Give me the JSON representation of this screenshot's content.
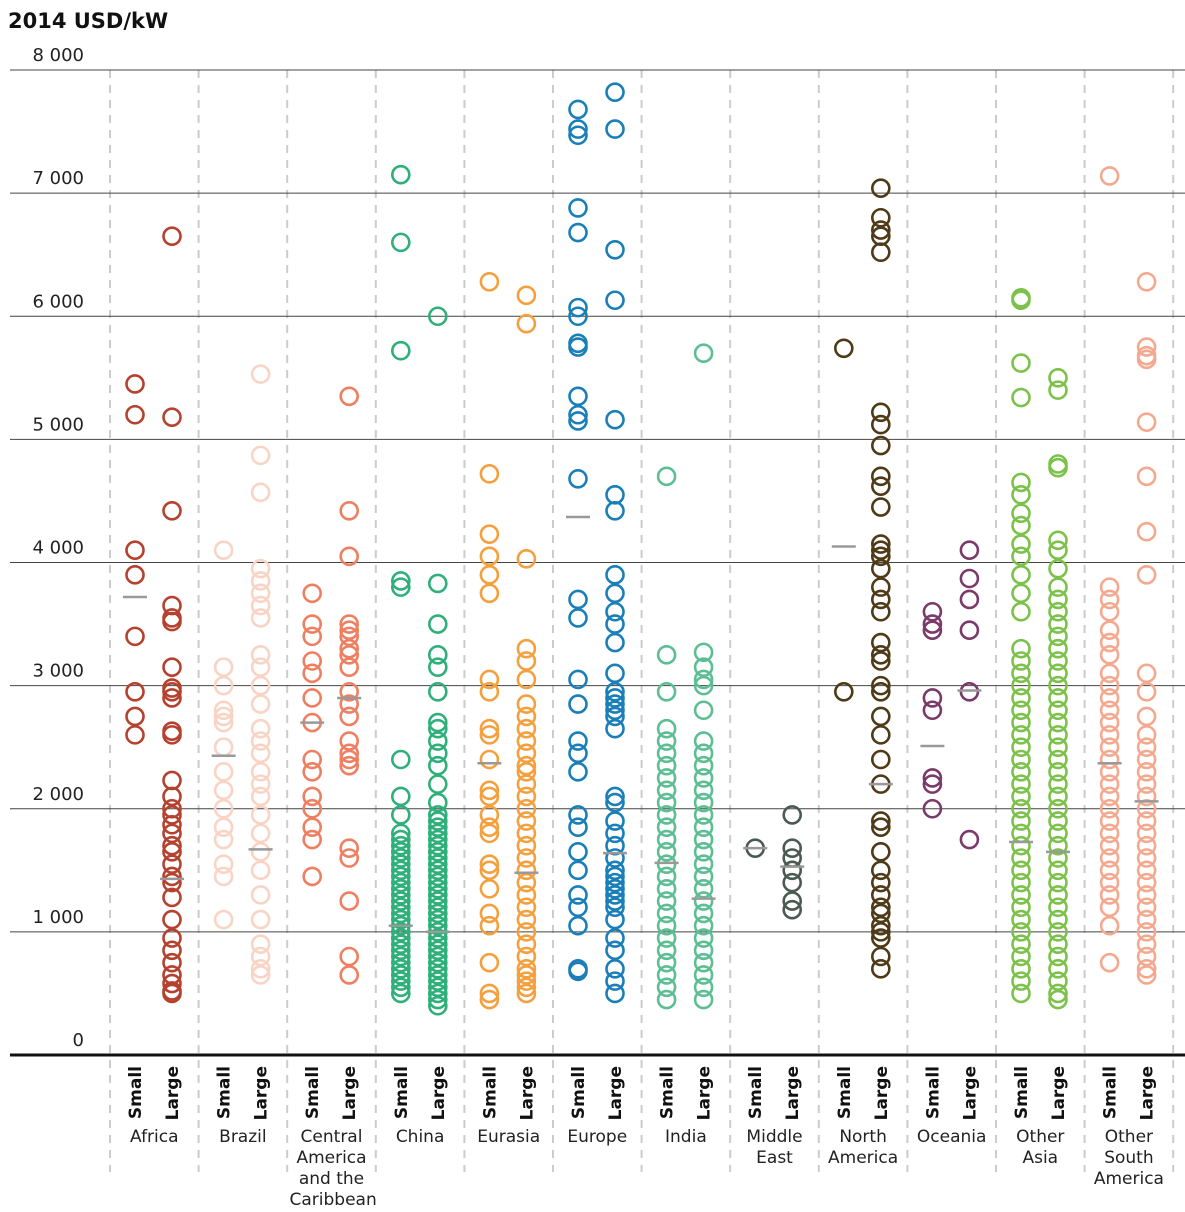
{
  "chart_data": {
    "type": "scatter",
    "title": "2014 USD/kW",
    "ylim": [
      0,
      8000
    ],
    "yticks": [
      0,
      {
        "value": 1000,
        "label": "1 000"
      },
      {
        "value": 2000,
        "label": "2 000"
      },
      {
        "value": 3000,
        "label": "3 000"
      },
      {
        "value": 4000,
        "label": "4 000"
      },
      {
        "value": 5000,
        "label": "5 000"
      },
      {
        "value": 6000,
        "label": "6 000"
      },
      {
        "value": 7000,
        "label": "7 000"
      },
      {
        "value": 8000,
        "label": "8 000"
      }
    ],
    "grid": true,
    "size_labels": [
      "Small",
      "Large"
    ],
    "median_color": "#999999",
    "series": [
      {
        "name": "Africa",
        "color": "#b5412f",
        "medians": [
          3720,
          1430
        ],
        "small": [
          5450,
          5200,
          4100,
          3900,
          3400,
          2950,
          2750,
          2600
        ],
        "large": [
          6650,
          5180,
          4420,
          3650,
          3550,
          3520,
          3150,
          2980,
          2950,
          2900,
          2630,
          2600,
          2230,
          2100,
          2000,
          1950,
          1870,
          1800,
          1700,
          1650,
          1550,
          1450,
          1400,
          1280,
          1100,
          950,
          850,
          750,
          650,
          580,
          520,
          500
        ]
      },
      {
        "name": "Brazil",
        "color": "#f9d4c4",
        "medians": [
          2430,
          1670
        ],
        "small": [
          4100,
          3150,
          3000,
          2800,
          2750,
          2700,
          2500,
          2300,
          2150,
          2000,
          1850,
          1750,
          1550,
          1450,
          1100
        ],
        "large": [
          5530,
          4870,
          4570,
          3950,
          3850,
          3750,
          3650,
          3550,
          3250,
          3150,
          3000,
          2850,
          2650,
          2550,
          2450,
          2300,
          2200,
          2100,
          1950,
          1800,
          1650,
          1500,
          1300,
          1100,
          900,
          800,
          700,
          650
        ]
      },
      {
        "name": "Central America and the Caribbean",
        "color": "#ef7f61",
        "medians": [
          2700,
          2900
        ],
        "small": [
          3750,
          3500,
          3400,
          3200,
          3100,
          2900,
          2700,
          2400,
          2300,
          2100,
          2000,
          1850,
          1750,
          1450
        ],
        "large": [
          5350,
          4420,
          4050,
          3500,
          3450,
          3400,
          3300,
          3250,
          3150,
          2950,
          2850,
          2750,
          2550,
          2450,
          2400,
          2350,
          1680,
          1600,
          1250,
          800,
          650
        ]
      },
      {
        "name": "China",
        "color": "#2fb07a",
        "medians": [
          1050,
          1000
        ],
        "small": [
          7150,
          6600,
          5720,
          3850,
          3800,
          2400,
          2100,
          1950,
          1800,
          1750,
          1700,
          1650,
          1600,
          1550,
          1500,
          1450,
          1400,
          1350,
          1300,
          1250,
          1200,
          1150,
          1100,
          1050,
          1000,
          950,
          900,
          850,
          800,
          750,
          700,
          650,
          600,
          550,
          500
        ],
        "large": [
          6000,
          3830,
          3500,
          3250,
          3150,
          2950,
          2700,
          2650,
          2550,
          2450,
          2350,
          2200,
          2050,
          1950,
          1900,
          1850,
          1800,
          1750,
          1700,
          1650,
          1600,
          1550,
          1500,
          1450,
          1400,
          1350,
          1300,
          1250,
          1200,
          1150,
          1100,
          1050,
          1000,
          950,
          900,
          850,
          800,
          750,
          700,
          650,
          600,
          550,
          500,
          450,
          400
        ]
      },
      {
        "name": "Eurasia",
        "color": "#f4a03e",
        "medians": [
          2370,
          1480
        ],
        "small": [
          6280,
          4720,
          4230,
          4050,
          3900,
          3750,
          3050,
          2950,
          2650,
          2600,
          2400,
          2150,
          2100,
          1950,
          1850,
          1800,
          1550,
          1500,
          1350,
          1150,
          1050,
          750,
          500,
          450
        ],
        "large": [
          6170,
          5940,
          4030,
          3300,
          3200,
          3050,
          2850,
          2750,
          2650,
          2550,
          2450,
          2350,
          2300,
          2200,
          2100,
          2000,
          1900,
          1800,
          1700,
          1600,
          1500,
          1400,
          1300,
          1200,
          1100,
          1000,
          900,
          800,
          700,
          650,
          600,
          550,
          500
        ]
      },
      {
        "name": "Europe",
        "color": "#1a7fb8",
        "medians": [
          4370,
          1640
        ],
        "small": [
          7680,
          7520,
          7470,
          6880,
          6680,
          6070,
          6000,
          5780,
          5750,
          5350,
          5200,
          5150,
          4680,
          3700,
          3550,
          3050,
          2850,
          2550,
          2450,
          2300,
          1950,
          1850,
          1650,
          1500,
          1300,
          1200,
          1050,
          700,
          680
        ],
        "large": [
          7820,
          7520,
          6540,
          6130,
          5160,
          4550,
          4420,
          3900,
          3750,
          3600,
          3500,
          3350,
          3100,
          2950,
          2900,
          2850,
          2800,
          2750,
          2650,
          2100,
          2050,
          1900,
          1800,
          1700,
          1600,
          1500,
          1450,
          1400,
          1350,
          1300,
          1250,
          1200,
          1100,
          950,
          850,
          700,
          600,
          500
        ]
      },
      {
        "name": "India",
        "color": "#5dbe94",
        "medians": [
          1560,
          1270
        ],
        "small": [
          4700,
          3250,
          2950,
          2650,
          2550,
          2450,
          2350,
          2250,
          2150,
          2050,
          1950,
          1850,
          1750,
          1650,
          1550,
          1450,
          1350,
          1250,
          1150,
          1050,
          950,
          850,
          750,
          650,
          550,
          450
        ],
        "large": [
          5700,
          3270,
          3150,
          3050,
          3000,
          2800,
          2550,
          2450,
          2350,
          2250,
          2150,
          2050,
          1950,
          1850,
          1750,
          1650,
          1550,
          1450,
          1350,
          1250,
          1150,
          1050,
          950,
          850,
          750,
          650,
          550,
          450
        ]
      },
      {
        "name": "Middle East",
        "color": "#4a5a52",
        "medians": [
          1680,
          1530
        ],
        "small": [
          1680
        ],
        "large": [
          1950,
          1680,
          1600,
          1500,
          1400,
          1250,
          1180
        ]
      },
      {
        "name": "North America",
        "color": "#4f3a17",
        "medians": [
          4130,
          2200
        ],
        "small": [
          5740,
          2950
        ],
        "large": [
          7040,
          6800,
          6700,
          6650,
          6520,
          5220,
          5120,
          4950,
          4700,
          4620,
          4450,
          4150,
          4100,
          4050,
          3950,
          3800,
          3700,
          3600,
          3350,
          3250,
          3200,
          3000,
          2950,
          2750,
          2600,
          2400,
          2200,
          1900,
          1850,
          1650,
          1500,
          1400,
          1300,
          1200,
          1150,
          1050,
          1000,
          950,
          800,
          700
        ]
      },
      {
        "name": "Oceania",
        "color": "#7a3a6a",
        "medians": [
          2510,
          2960
        ],
        "small": [
          3600,
          3500,
          3450,
          2900,
          2800,
          2250,
          2200,
          2000
        ],
        "large": [
          4100,
          3870,
          3700,
          3450,
          2950,
          1750
        ]
      },
      {
        "name": "Other Asia",
        "color": "#7cc14a",
        "medians": [
          1730,
          1650
        ],
        "small": [
          6150,
          6130,
          5620,
          5340,
          4650,
          4550,
          4400,
          4300,
          4150,
          4050,
          3900,
          3750,
          3600,
          3300,
          3200,
          3100,
          3000,
          2900,
          2800,
          2700,
          2600,
          2500,
          2400,
          2300,
          2200,
          2100,
          2000,
          1900,
          1800,
          1700,
          1600,
          1500,
          1400,
          1300,
          1200,
          1100,
          1000,
          900,
          800,
          700,
          600,
          500
        ],
        "large": [
          5500,
          5400,
          4800,
          4770,
          4180,
          4100,
          3950,
          3800,
          3700,
          3600,
          3500,
          3400,
          3300,
          3200,
          3100,
          3000,
          2900,
          2800,
          2700,
          2600,
          2500,
          2400,
          2300,
          2200,
          2100,
          2000,
          1900,
          1800,
          1700,
          1600,
          1500,
          1400,
          1300,
          1200,
          1100,
          1000,
          900,
          800,
          700,
          600,
          500,
          450
        ]
      },
      {
        "name": "Other South America",
        "color": "#f4a98f",
        "medians": [
          2370,
          2060
        ],
        "small": [
          7140,
          3800,
          3700,
          3600,
          3450,
          3350,
          3250,
          3100,
          3000,
          2900,
          2800,
          2700,
          2600,
          2500,
          2400,
          2300,
          2200,
          2100,
          2000,
          1900,
          1800,
          1700,
          1600,
          1500,
          1400,
          1300,
          1200,
          1050,
          750
        ],
        "large": [
          6280,
          5750,
          5680,
          5650,
          5140,
          4700,
          4250,
          3900,
          3100,
          2950,
          2750,
          2600,
          2500,
          2400,
          2300,
          2200,
          2100,
          2000,
          1900,
          1800,
          1700,
          1600,
          1500,
          1400,
          1300,
          1200,
          1100,
          1000,
          900,
          800,
          700,
          650
        ]
      }
    ]
  }
}
